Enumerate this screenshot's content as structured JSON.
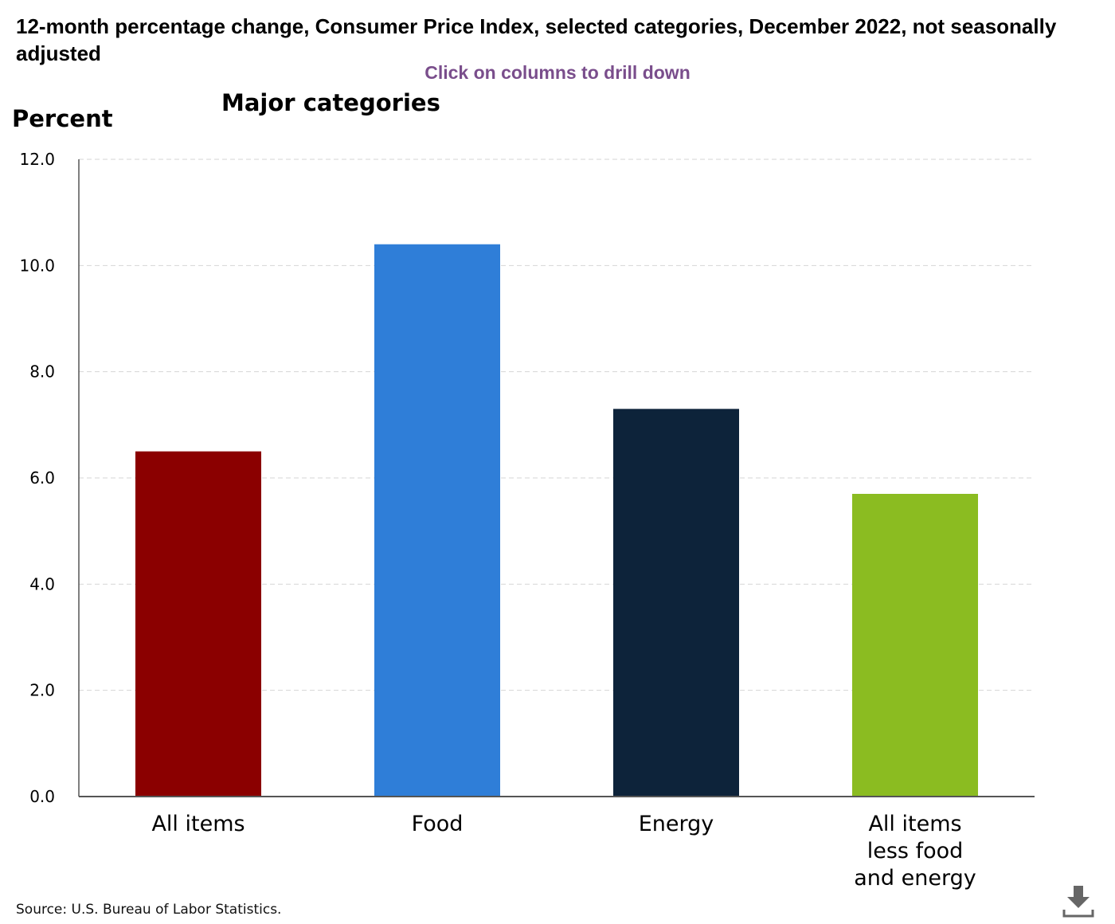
{
  "chart_data": {
    "type": "bar",
    "title": "12-month percentage change, Consumer Price Index, selected categories, December 2022, not seasonally adjusted",
    "subtitle": "Major categories",
    "instruction": "Click on columns to drill down",
    "ylabel": "Percent",
    "xlabel": "",
    "ylim": [
      0,
      12
    ],
    "yticks": [
      "0.0",
      "2.0",
      "4.0",
      "6.0",
      "8.0",
      "10.0",
      "12.0"
    ],
    "ytick_values": [
      0,
      2,
      4,
      6,
      8,
      10,
      12
    ],
    "grid": true,
    "categories": [
      "All items",
      "Food",
      "Energy",
      "All items less food and energy"
    ],
    "category_lines": [
      [
        "All items"
      ],
      [
        "Food"
      ],
      [
        "Energy"
      ],
      [
        "All items",
        "less food",
        "and energy"
      ]
    ],
    "values": [
      6.5,
      10.4,
      7.3,
      5.7
    ],
    "colors": [
      "#8b0000",
      "#2f7ed8",
      "#0d233a",
      "#8bbc21"
    ],
    "source": "Source: U.S. Bureau of Labor Statistics.",
    "download_icon": "download-icon"
  }
}
